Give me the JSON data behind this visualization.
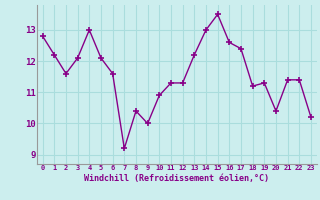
{
  "x": [
    0,
    1,
    2,
    3,
    4,
    5,
    6,
    7,
    8,
    9,
    10,
    11,
    12,
    13,
    14,
    15,
    16,
    17,
    18,
    19,
    20,
    21,
    22,
    23
  ],
  "y": [
    12.8,
    12.2,
    11.6,
    12.1,
    13.0,
    12.1,
    11.6,
    9.2,
    10.4,
    10.0,
    10.9,
    11.3,
    11.3,
    12.2,
    13.0,
    13.5,
    12.6,
    12.4,
    11.2,
    11.3,
    10.4,
    11.4,
    11.4,
    10.2
  ],
  "color": "#880088",
  "bg_color": "#cceeee",
  "grid_color": "#aadddd",
  "xlabel": "Windchill (Refroidissement éolien,°C)",
  "ylim": [
    8.7,
    13.8
  ],
  "xlim": [
    -0.5,
    23.5
  ],
  "yticks": [
    9,
    10,
    11,
    12,
    13
  ],
  "xticks": [
    0,
    1,
    2,
    3,
    4,
    5,
    6,
    7,
    8,
    9,
    10,
    11,
    12,
    13,
    14,
    15,
    16,
    17,
    18,
    19,
    20,
    21,
    22,
    23
  ],
  "marker": "+",
  "linewidth": 1.0,
  "markersize": 4,
  "markeredgewidth": 1.2
}
